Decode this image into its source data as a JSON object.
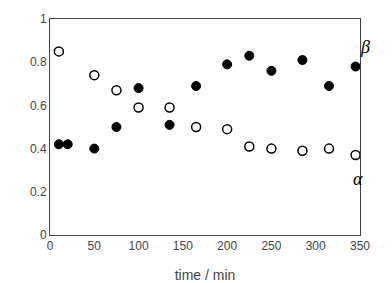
{
  "chart_data": {
    "type": "scatter",
    "x_label": "time / min",
    "series": [
      {
        "x": [
          10,
          20,
          50,
          75,
          100,
          135,
          165,
          200,
          225,
          250,
          285,
          315,
          345
        ],
        "values": [
          0.42,
          0.42,
          0.4,
          0.5,
          0.68,
          0.51,
          0.69,
          0.79,
          0.83,
          0.76,
          0.81,
          0.69,
          0.78
        ],
        "color": "#000000",
        "marker": "filled"
      },
      {
        "x": [
          10,
          50,
          75,
          100,
          135,
          165,
          200,
          225,
          250,
          285,
          315,
          345
        ],
        "values": [
          0.85,
          0.74,
          0.67,
          0.59,
          0.59,
          0.5,
          0.49,
          0.41,
          0.4,
          0.39,
          0.4,
          0.37
        ],
        "color": "#000000",
        "marker": "open"
      }
    ],
    "annotations": [
      {
        "text": "β",
        "x": 348,
        "y": 0.87
      },
      {
        "text": "α",
        "x": 340,
        "y": 0.26
      }
    ],
    "xlim": [
      0,
      350
    ],
    "xticks": [
      0,
      50,
      100,
      150,
      200,
      250,
      300,
      350
    ],
    "ylim": [
      0,
      1
    ],
    "yticks": [
      0,
      0.2,
      0.4,
      0.6,
      0.8,
      1
    ],
    "grid": false,
    "legend": false
  }
}
